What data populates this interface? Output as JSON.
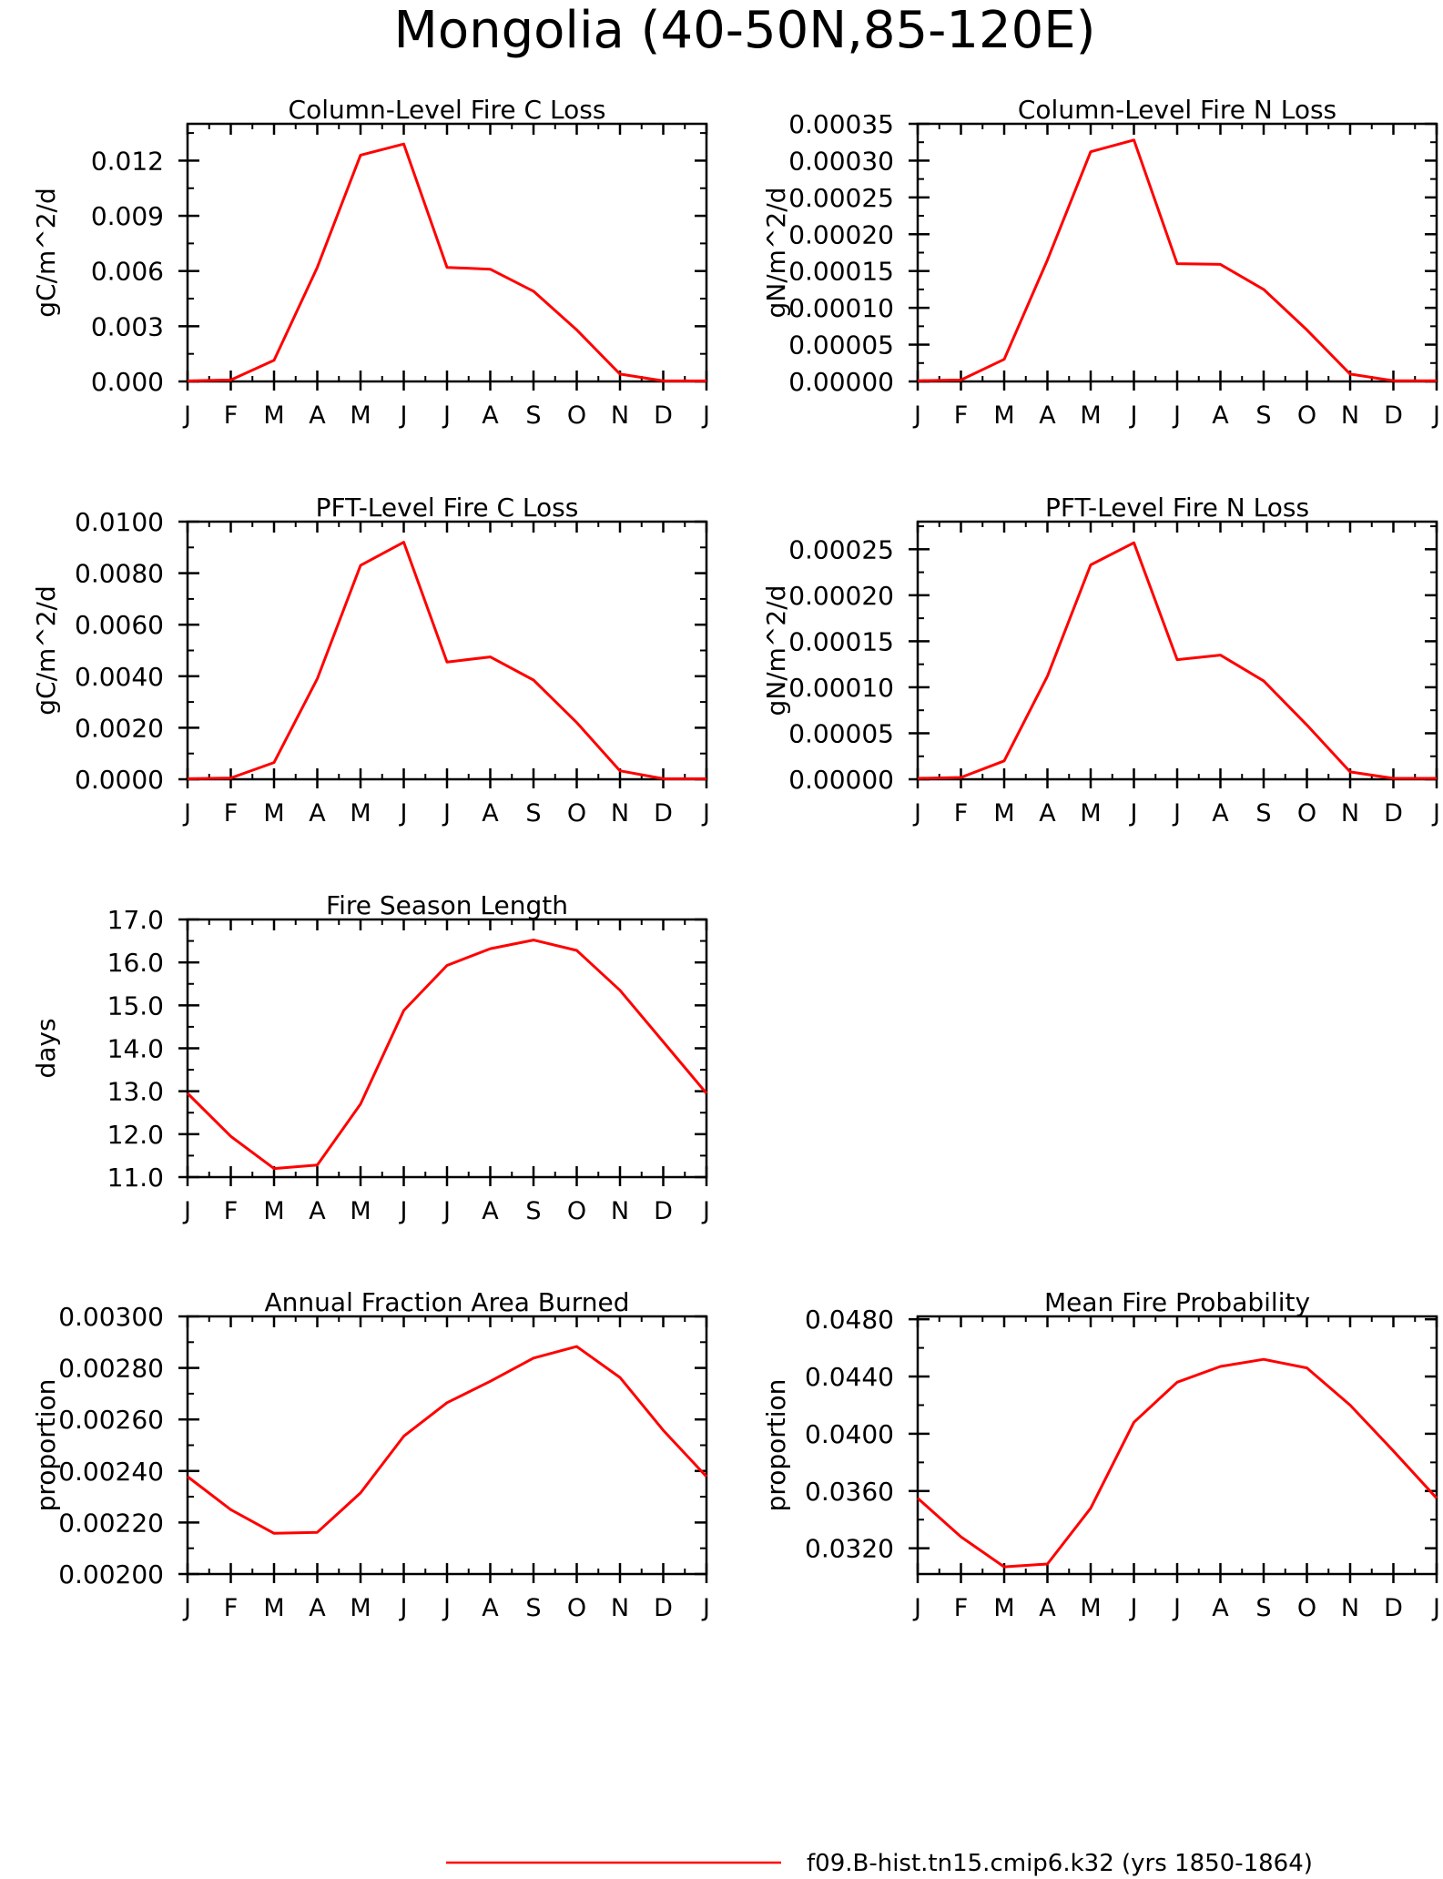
{
  "figure": {
    "title": "Mongolia (40-50N,85-120E)",
    "legend_label": "f09.B-hist.tn15.cmip6.k32 (yrs 1850-1864)",
    "line_color": "#ff0000"
  },
  "chart_data": [
    {
      "type": "line",
      "title": "Column-Level Fire C Loss",
      "ylabel": "gC/m^2/d",
      "categories": [
        "J",
        "F",
        "M",
        "A",
        "M",
        "J",
        "J",
        "A",
        "S",
        "O",
        "N",
        "D",
        "J"
      ],
      "yticks": [
        "0.000",
        "0.003",
        "0.006",
        "0.009",
        "0.012"
      ],
      "ylim": [
        0,
        0.014
      ],
      "series": [
        {
          "values": [
            3e-05,
            8e-05,
            0.00115,
            0.0062,
            0.0123,
            0.0129,
            0.0062,
            0.0061,
            0.0049,
            0.0028,
            0.0004,
            3e-05,
            3e-05
          ]
        }
      ]
    },
    {
      "type": "line",
      "title": "Column-Level Fire N Loss",
      "ylabel": "gN/m^2/d",
      "categories": [
        "J",
        "F",
        "M",
        "A",
        "M",
        "J",
        "J",
        "A",
        "S",
        "O",
        "N",
        "D",
        "J"
      ],
      "yticks": [
        "0.00000",
        "0.00005",
        "0.00010",
        "0.00015",
        "0.00020",
        "0.00025",
        "0.00030",
        "0.00035"
      ],
      "ylim": [
        0,
        0.00035
      ],
      "series": [
        {
          "values": [
            1e-06,
            2e-06,
            3e-05,
            0.000165,
            0.000312,
            0.000328,
            0.00016,
            0.000159,
            0.000125,
            7e-05,
            1e-05,
            1e-06,
            1e-06
          ]
        }
      ]
    },
    {
      "type": "line",
      "title": "PFT-Level Fire C Loss",
      "ylabel": "gC/m^2/d",
      "categories": [
        "J",
        "F",
        "M",
        "A",
        "M",
        "J",
        "J",
        "A",
        "S",
        "O",
        "N",
        "D",
        "J"
      ],
      "yticks": [
        "0.0000",
        "0.0020",
        "0.0040",
        "0.0060",
        "0.0080",
        "0.0100"
      ],
      "ylim": [
        0,
        0.01
      ],
      "series": [
        {
          "values": [
            2e-05,
            5e-05,
            0.00065,
            0.0039,
            0.0083,
            0.0092,
            0.00455,
            0.00475,
            0.00385,
            0.0022,
            0.00033,
            2e-05,
            2e-05
          ]
        }
      ]
    },
    {
      "type": "line",
      "title": "PFT-Level Fire N Loss",
      "ylabel": "gN/m^2/d",
      "categories": [
        "J",
        "F",
        "M",
        "A",
        "M",
        "J",
        "J",
        "A",
        "S",
        "O",
        "N",
        "D",
        "J"
      ],
      "yticks": [
        "0.00000",
        "0.00005",
        "0.00010",
        "0.00015",
        "0.00020",
        "0.00025"
      ],
      "ylim": [
        0,
        0.00028
      ],
      "series": [
        {
          "values": [
            1e-06,
            2e-06,
            2e-05,
            0.000112,
            0.000233,
            0.000257,
            0.00013,
            0.000135,
            0.000107,
            5.9e-05,
            8e-06,
            1e-06,
            1e-06
          ]
        }
      ]
    },
    {
      "type": "line",
      "title": "Fire Season Length",
      "ylabel": "days",
      "categories": [
        "J",
        "F",
        "M",
        "A",
        "M",
        "J",
        "J",
        "A",
        "S",
        "O",
        "N",
        "D",
        "J"
      ],
      "yticks": [
        "11.0",
        "12.0",
        "13.0",
        "14.0",
        "15.0",
        "16.0",
        "17.0"
      ],
      "ylim": [
        11,
        17
      ],
      "series": [
        {
          "values": [
            12.95,
            11.95,
            11.2,
            11.28,
            12.7,
            14.88,
            15.93,
            16.32,
            16.52,
            16.28,
            15.35,
            14.15,
            12.95
          ]
        }
      ]
    },
    {
      "type": "line",
      "title": "Annual Fraction Area Burned",
      "ylabel": "proportion",
      "categories": [
        "J",
        "F",
        "M",
        "A",
        "M",
        "J",
        "J",
        "A",
        "S",
        "O",
        "N",
        "D",
        "J"
      ],
      "yticks": [
        "0.00200",
        "0.00220",
        "0.00240",
        "0.00260",
        "0.00280",
        "0.00300"
      ],
      "ylim": [
        0.002,
        0.003
      ],
      "series": [
        {
          "values": [
            0.002378,
            0.00225,
            0.002158,
            0.002162,
            0.002315,
            0.002535,
            0.002665,
            0.002748,
            0.002838,
            0.002883,
            0.002763,
            0.002558,
            0.002378
          ]
        }
      ]
    },
    {
      "type": "line",
      "title": "Mean Fire Probability",
      "ylabel": "proportion",
      "categories": [
        "J",
        "F",
        "M",
        "A",
        "M",
        "J",
        "J",
        "A",
        "S",
        "O",
        "N",
        "D",
        "J"
      ],
      "yticks": [
        "0.0320",
        "0.0360",
        "0.0400",
        "0.0440",
        "0.0480"
      ],
      "ylim": [
        0.0302,
        0.0482
      ],
      "series": [
        {
          "values": [
            0.0355,
            0.0328,
            0.0307,
            0.0309,
            0.0348,
            0.0408,
            0.0436,
            0.0447,
            0.0452,
            0.0446,
            0.042,
            0.0388,
            0.0355
          ]
        }
      ]
    }
  ]
}
